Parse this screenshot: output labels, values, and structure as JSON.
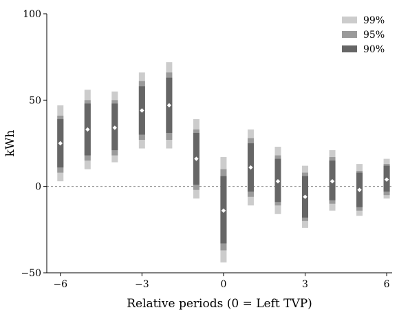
{
  "chart_data": {
    "type": "interval",
    "title": "",
    "xlabel": "Relative periods (0 = Left TVP)",
    "ylabel": "kWh",
    "xlim": [
      -6.5,
      6.2
    ],
    "ylim": [
      -50,
      100
    ],
    "xticks": [
      -6,
      -3,
      0,
      3,
      6
    ],
    "yticks": [
      -50,
      0,
      50,
      100
    ],
    "zero_line": {
      "y": 0,
      "style": "dashed"
    },
    "legend": {
      "position": "top-right",
      "entries": [
        {
          "name": "99%",
          "color": "#cccccc"
        },
        {
          "name": "95%",
          "color": "#9a9a9a"
        },
        {
          "name": "90%",
          "color": "#666666"
        }
      ]
    },
    "point_marker": {
      "shape": "diamond",
      "color": "#ffffff"
    },
    "points": [
      {
        "x": -6,
        "estimate": 25,
        "ci99": [
          3,
          47
        ],
        "ci95": [
          8,
          41
        ],
        "ci90": [
          11,
          39
        ]
      },
      {
        "x": -5,
        "estimate": 33,
        "ci99": [
          10,
          56
        ],
        "ci95": [
          15,
          50
        ],
        "ci90": [
          18,
          48
        ]
      },
      {
        "x": -4,
        "estimate": 34,
        "ci99": [
          14,
          55
        ],
        "ci95": [
          18,
          50
        ],
        "ci90": [
          21,
          48
        ]
      },
      {
        "x": -3,
        "estimate": 44,
        "ci99": [
          22,
          66
        ],
        "ci95": [
          27,
          61
        ],
        "ci90": [
          30,
          58
        ]
      },
      {
        "x": -2,
        "estimate": 47,
        "ci99": [
          22,
          72
        ],
        "ci95": [
          27,
          66
        ],
        "ci90": [
          31,
          63
        ]
      },
      {
        "x": -1,
        "estimate": 16,
        "ci99": [
          -7,
          39
        ],
        "ci95": [
          -2,
          33
        ],
        "ci90": [
          1,
          31
        ]
      },
      {
        "x": 0,
        "estimate": -14,
        "ci99": [
          -44,
          17
        ],
        "ci95": [
          -37,
          10
        ],
        "ci90": [
          -33,
          6
        ]
      },
      {
        "x": 1,
        "estimate": 11,
        "ci99": [
          -11,
          33
        ],
        "ci95": [
          -6,
          28
        ],
        "ci90": [
          -3,
          25
        ]
      },
      {
        "x": 2,
        "estimate": 3,
        "ci99": [
          -16,
          23
        ],
        "ci95": [
          -11,
          18
        ],
        "ci90": [
          -9,
          16
        ]
      },
      {
        "x": 3,
        "estimate": -6,
        "ci99": [
          -24,
          12
        ],
        "ci95": [
          -20,
          8
        ],
        "ci90": [
          -18,
          6
        ]
      },
      {
        "x": 4,
        "estimate": 3,
        "ci99": [
          -14,
          21
        ],
        "ci95": [
          -10,
          17
        ],
        "ci90": [
          -8,
          15
        ]
      },
      {
        "x": 5,
        "estimate": -2,
        "ci99": [
          -17,
          13
        ],
        "ci95": [
          -14,
          9
        ],
        "ci90": [
          -12,
          8
        ]
      },
      {
        "x": 6,
        "estimate": 4,
        "ci99": [
          -7,
          16
        ],
        "ci95": [
          -5,
          13
        ],
        "ci90": [
          -3,
          12
        ]
      }
    ]
  }
}
